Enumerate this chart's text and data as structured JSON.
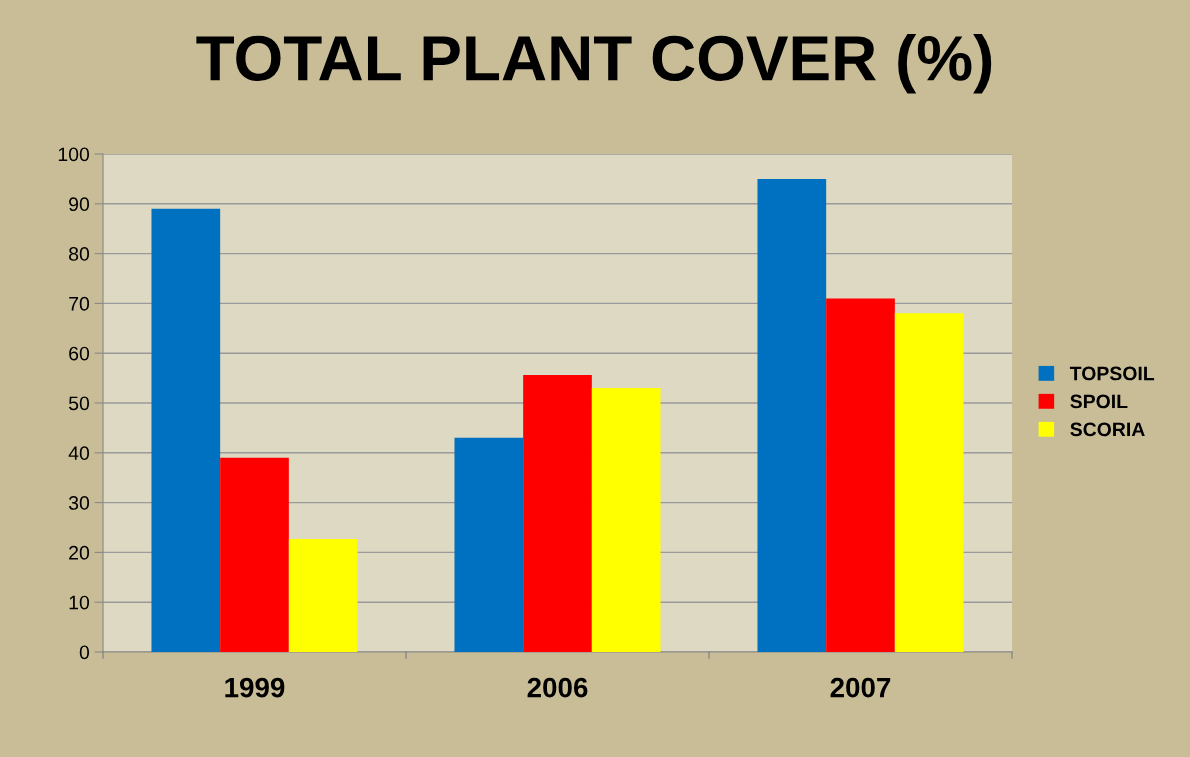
{
  "chart_data": {
    "type": "bar",
    "title": "TOTAL PLANT COVER (%)",
    "categories": [
      "1999",
      "2006",
      "2007"
    ],
    "series": [
      {
        "name": "TOPSOIL",
        "color": "#0070c0",
        "values": [
          89,
          43,
          95
        ]
      },
      {
        "name": "SPOIL",
        "color": "#ff0000",
        "values": [
          39,
          55.6,
          71
        ]
      },
      {
        "name": "SCORIA",
        "color": "#ffff00",
        "values": [
          22.7,
          53,
          68
        ]
      }
    ],
    "ylim": [
      0,
      100
    ],
    "yticks": [
      0,
      10,
      20,
      30,
      40,
      50,
      60,
      70,
      80,
      90,
      100
    ],
    "grid": "y",
    "legend": "right"
  }
}
